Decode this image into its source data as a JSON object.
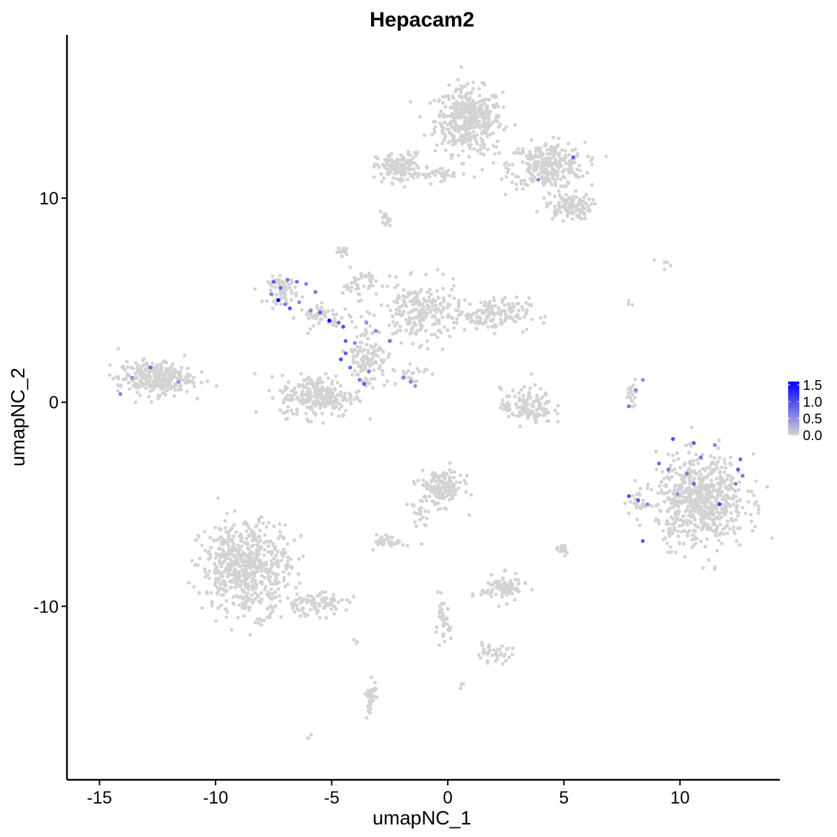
{
  "chart_data": {
    "type": "scatter",
    "title": "Hepacam2",
    "xlabel": "umapNC_1",
    "ylabel": "umapNC_2",
    "xlim": [
      -16.4,
      14.3
    ],
    "ylim": [
      -18.5,
      18.0
    ],
    "x_ticks": [
      -15,
      -10,
      -5,
      0,
      5,
      10
    ],
    "x_tick_labels": [
      "-15",
      "-10",
      "-5",
      "0",
      "5",
      "10"
    ],
    "y_ticks": [
      -10,
      0,
      10
    ],
    "y_tick_labels": [
      "-10",
      "0",
      "10"
    ],
    "grid": false,
    "legend_position": "right",
    "color_scale": {
      "low_color": "#d3d3d3",
      "high_color": "#0000ff",
      "min": 0.0,
      "max": 1.6,
      "breaks": [
        0.0,
        0.5,
        1.0,
        1.5
      ],
      "break_labels": [
        "0.0",
        "0.5",
        "1.0",
        "1.5"
      ]
    },
    "clusters": [
      {
        "cx": 0.9,
        "cy": 13.8,
        "sx": 0.9,
        "sy": 1.0,
        "n": 420
      },
      {
        "cx": 4.3,
        "cy": 11.6,
        "sx": 1.0,
        "sy": 0.7,
        "n": 300
      },
      {
        "cx": 5.2,
        "cy": 9.6,
        "sx": 0.6,
        "sy": 0.4,
        "n": 110
      },
      {
        "cx": -2.1,
        "cy": 11.5,
        "sx": 0.6,
        "sy": 0.45,
        "n": 140
      },
      {
        "cx": -0.4,
        "cy": 11.2,
        "sx": 0.9,
        "sy": 0.2,
        "n": 40
      },
      {
        "cx": -2.7,
        "cy": 8.9,
        "sx": 0.15,
        "sy": 0.25,
        "n": 14
      },
      {
        "cx": -4.5,
        "cy": 7.4,
        "sx": 0.15,
        "sy": 0.12,
        "n": 18
      },
      {
        "cx": -7.1,
        "cy": 5.5,
        "sx": 0.4,
        "sy": 0.4,
        "n": 70
      },
      {
        "cx": -5.3,
        "cy": 4.2,
        "sx": 0.7,
        "sy": 0.35,
        "n": 50
      },
      {
        "cx": -3.8,
        "cy": 5.8,
        "sx": 0.45,
        "sy": 0.45,
        "n": 40
      },
      {
        "cx": -1.2,
        "cy": 4.4,
        "sx": 1.1,
        "sy": 0.9,
        "n": 230
      },
      {
        "cx": 1.9,
        "cy": 4.3,
        "sx": 1.0,
        "sy": 0.5,
        "n": 150
      },
      {
        "cx": -5.6,
        "cy": 0.3,
        "sx": 1.0,
        "sy": 0.65,
        "n": 250
      },
      {
        "cx": -3.5,
        "cy": 2.2,
        "sx": 0.55,
        "sy": 1.0,
        "n": 120
      },
      {
        "cx": -1.6,
        "cy": 1.4,
        "sx": 0.45,
        "sy": 0.35,
        "n": 24
      },
      {
        "cx": -12.6,
        "cy": 1.2,
        "sx": 1.0,
        "sy": 0.5,
        "n": 300
      },
      {
        "cx": 3.4,
        "cy": -0.2,
        "sx": 0.7,
        "sy": 0.55,
        "n": 130
      },
      {
        "cx": 8.0,
        "cy": 0.4,
        "sx": 0.15,
        "sy": 0.4,
        "n": 18
      },
      {
        "cx": 10.9,
        "cy": -4.8,
        "sx": 1.2,
        "sy": 1.35,
        "n": 650
      },
      {
        "cx": 8.3,
        "cy": -4.9,
        "sx": 0.3,
        "sy": 0.4,
        "n": 25
      },
      {
        "cx": -0.3,
        "cy": -4.2,
        "sx": 0.6,
        "sy": 0.55,
        "n": 160
      },
      {
        "cx": -1.3,
        "cy": -5.6,
        "sx": 0.35,
        "sy": 0.5,
        "n": 20
      },
      {
        "cx": -2.5,
        "cy": -6.8,
        "sx": 0.4,
        "sy": 0.2,
        "n": 40
      },
      {
        "cx": 5.0,
        "cy": -7.3,
        "sx": 0.15,
        "sy": 0.15,
        "n": 15
      },
      {
        "cx": 2.4,
        "cy": -9.1,
        "sx": 0.6,
        "sy": 0.4,
        "n": 90
      },
      {
        "cx": -8.7,
        "cy": -8.1,
        "sx": 1.2,
        "sy": 1.4,
        "n": 600
      },
      {
        "cx": -5.8,
        "cy": -9.9,
        "sx": 0.9,
        "sy": 0.35,
        "n": 90
      },
      {
        "cx": -0.2,
        "cy": -10.9,
        "sx": 0.2,
        "sy": 0.7,
        "n": 40
      },
      {
        "cx": 1.9,
        "cy": -12.3,
        "sx": 0.55,
        "sy": 0.25,
        "n": 40
      },
      {
        "cx": -3.3,
        "cy": -14.4,
        "sx": 0.15,
        "sy": 0.55,
        "n": 40
      },
      {
        "cx": 9.4,
        "cy": 6.8,
        "sx": 0.7,
        "sy": 0.15,
        "n": 5
      },
      {
        "cx": 7.8,
        "cy": 4.7,
        "sx": 0.1,
        "sy": 0.15,
        "n": 3
      },
      {
        "cx": -6.0,
        "cy": -16.4,
        "sx": 0.1,
        "sy": 0.1,
        "n": 3
      },
      {
        "cx": 0.7,
        "cy": -13.9,
        "sx": 0.1,
        "sy": 0.1,
        "n": 3
      },
      {
        "cx": -3.9,
        "cy": -11.8,
        "sx": 0.1,
        "sy": 0.15,
        "n": 3
      }
    ],
    "expressing_points": [
      {
        "x": -7.3,
        "y": 5.0,
        "v": 1.6
      },
      {
        "x": -5.1,
        "y": 4.0,
        "v": 1.6
      },
      {
        "x": -7.5,
        "y": 5.9,
        "v": 0.9
      },
      {
        "x": -7.2,
        "y": 5.6,
        "v": 0.8
      },
      {
        "x": -7.0,
        "y": 4.8,
        "v": 0.7
      },
      {
        "x": -6.8,
        "y": 4.6,
        "v": 0.9
      },
      {
        "x": -7.6,
        "y": 5.3,
        "v": 0.6
      },
      {
        "x": -6.9,
        "y": 6.0,
        "v": 0.7
      },
      {
        "x": -6.5,
        "y": 5.9,
        "v": 0.8
      },
      {
        "x": -6.1,
        "y": 5.8,
        "v": 0.6
      },
      {
        "x": -5.7,
        "y": 5.4,
        "v": 0.7
      },
      {
        "x": -5.5,
        "y": 4.4,
        "v": 0.9
      },
      {
        "x": -4.7,
        "y": 3.9,
        "v": 0.8
      },
      {
        "x": -4.5,
        "y": 3.7,
        "v": 1.0
      },
      {
        "x": -5.9,
        "y": 4.5,
        "v": 0.6
      },
      {
        "x": -4.4,
        "y": 3.0,
        "v": 0.9
      },
      {
        "x": -4.4,
        "y": 2.4,
        "v": 0.9
      },
      {
        "x": -4.6,
        "y": 2.1,
        "v": 1.0
      },
      {
        "x": -4.2,
        "y": 1.7,
        "v": 0.8
      },
      {
        "x": -3.8,
        "y": 1.1,
        "v": 0.7
      },
      {
        "x": -4.0,
        "y": 2.9,
        "v": 0.6
      },
      {
        "x": -3.5,
        "y": 3.9,
        "v": 0.5
      },
      {
        "x": -3.1,
        "y": 3.5,
        "v": 0.6
      },
      {
        "x": -2.5,
        "y": 3.0,
        "v": 0.7
      },
      {
        "x": -3.4,
        "y": 1.5,
        "v": 0.7
      },
      {
        "x": -3.6,
        "y": 0.9,
        "v": 0.9
      },
      {
        "x": -1.9,
        "y": 1.2,
        "v": 0.6
      },
      {
        "x": -1.6,
        "y": 1.0,
        "v": 0.6
      },
      {
        "x": -1.4,
        "y": 0.8,
        "v": 0.5
      },
      {
        "x": -6.4,
        "y": 4.9,
        "v": 0.6
      },
      {
        "x": -14.1,
        "y": 0.4,
        "v": 0.6
      },
      {
        "x": -13.6,
        "y": 1.2,
        "v": 0.5
      },
      {
        "x": -12.8,
        "y": 1.7,
        "v": 0.8
      },
      {
        "x": -11.6,
        "y": 1.0,
        "v": 0.5
      },
      {
        "x": 5.4,
        "y": 12.0,
        "v": 0.9
      },
      {
        "x": 3.9,
        "y": 10.9,
        "v": 0.6
      },
      {
        "x": 7.8,
        "y": -0.2,
        "v": 0.7
      },
      {
        "x": 8.1,
        "y": 0.6,
        "v": 0.6
      },
      {
        "x": 8.4,
        "y": 1.1,
        "v": 0.5
      },
      {
        "x": 7.8,
        "y": -4.6,
        "v": 1.0
      },
      {
        "x": 8.2,
        "y": -4.8,
        "v": 0.9
      },
      {
        "x": 8.6,
        "y": -5.0,
        "v": 0.6
      },
      {
        "x": 8.4,
        "y": -6.8,
        "v": 0.9
      },
      {
        "x": 9.1,
        "y": -3.0,
        "v": 0.8
      },
      {
        "x": 9.5,
        "y": -3.3,
        "v": 0.7
      },
      {
        "x": 9.7,
        "y": -1.8,
        "v": 1.0
      },
      {
        "x": 10.6,
        "y": -2.0,
        "v": 0.9
      },
      {
        "x": 10.9,
        "y": -2.7,
        "v": 0.7
      },
      {
        "x": 10.6,
        "y": -4.0,
        "v": 0.8
      },
      {
        "x": 11.5,
        "y": -2.1,
        "v": 0.6
      },
      {
        "x": 12.5,
        "y": -3.3,
        "v": 0.9
      },
      {
        "x": 12.6,
        "y": -2.8,
        "v": 0.8
      },
      {
        "x": 12.7,
        "y": -3.6,
        "v": 0.7
      },
      {
        "x": 11.7,
        "y": -5.0,
        "v": 1.1
      },
      {
        "x": 12.4,
        "y": -4.0,
        "v": 0.6
      },
      {
        "x": 9.9,
        "y": -4.5,
        "v": 0.5
      },
      {
        "x": 10.3,
        "y": -3.5,
        "v": 0.7
      }
    ]
  }
}
